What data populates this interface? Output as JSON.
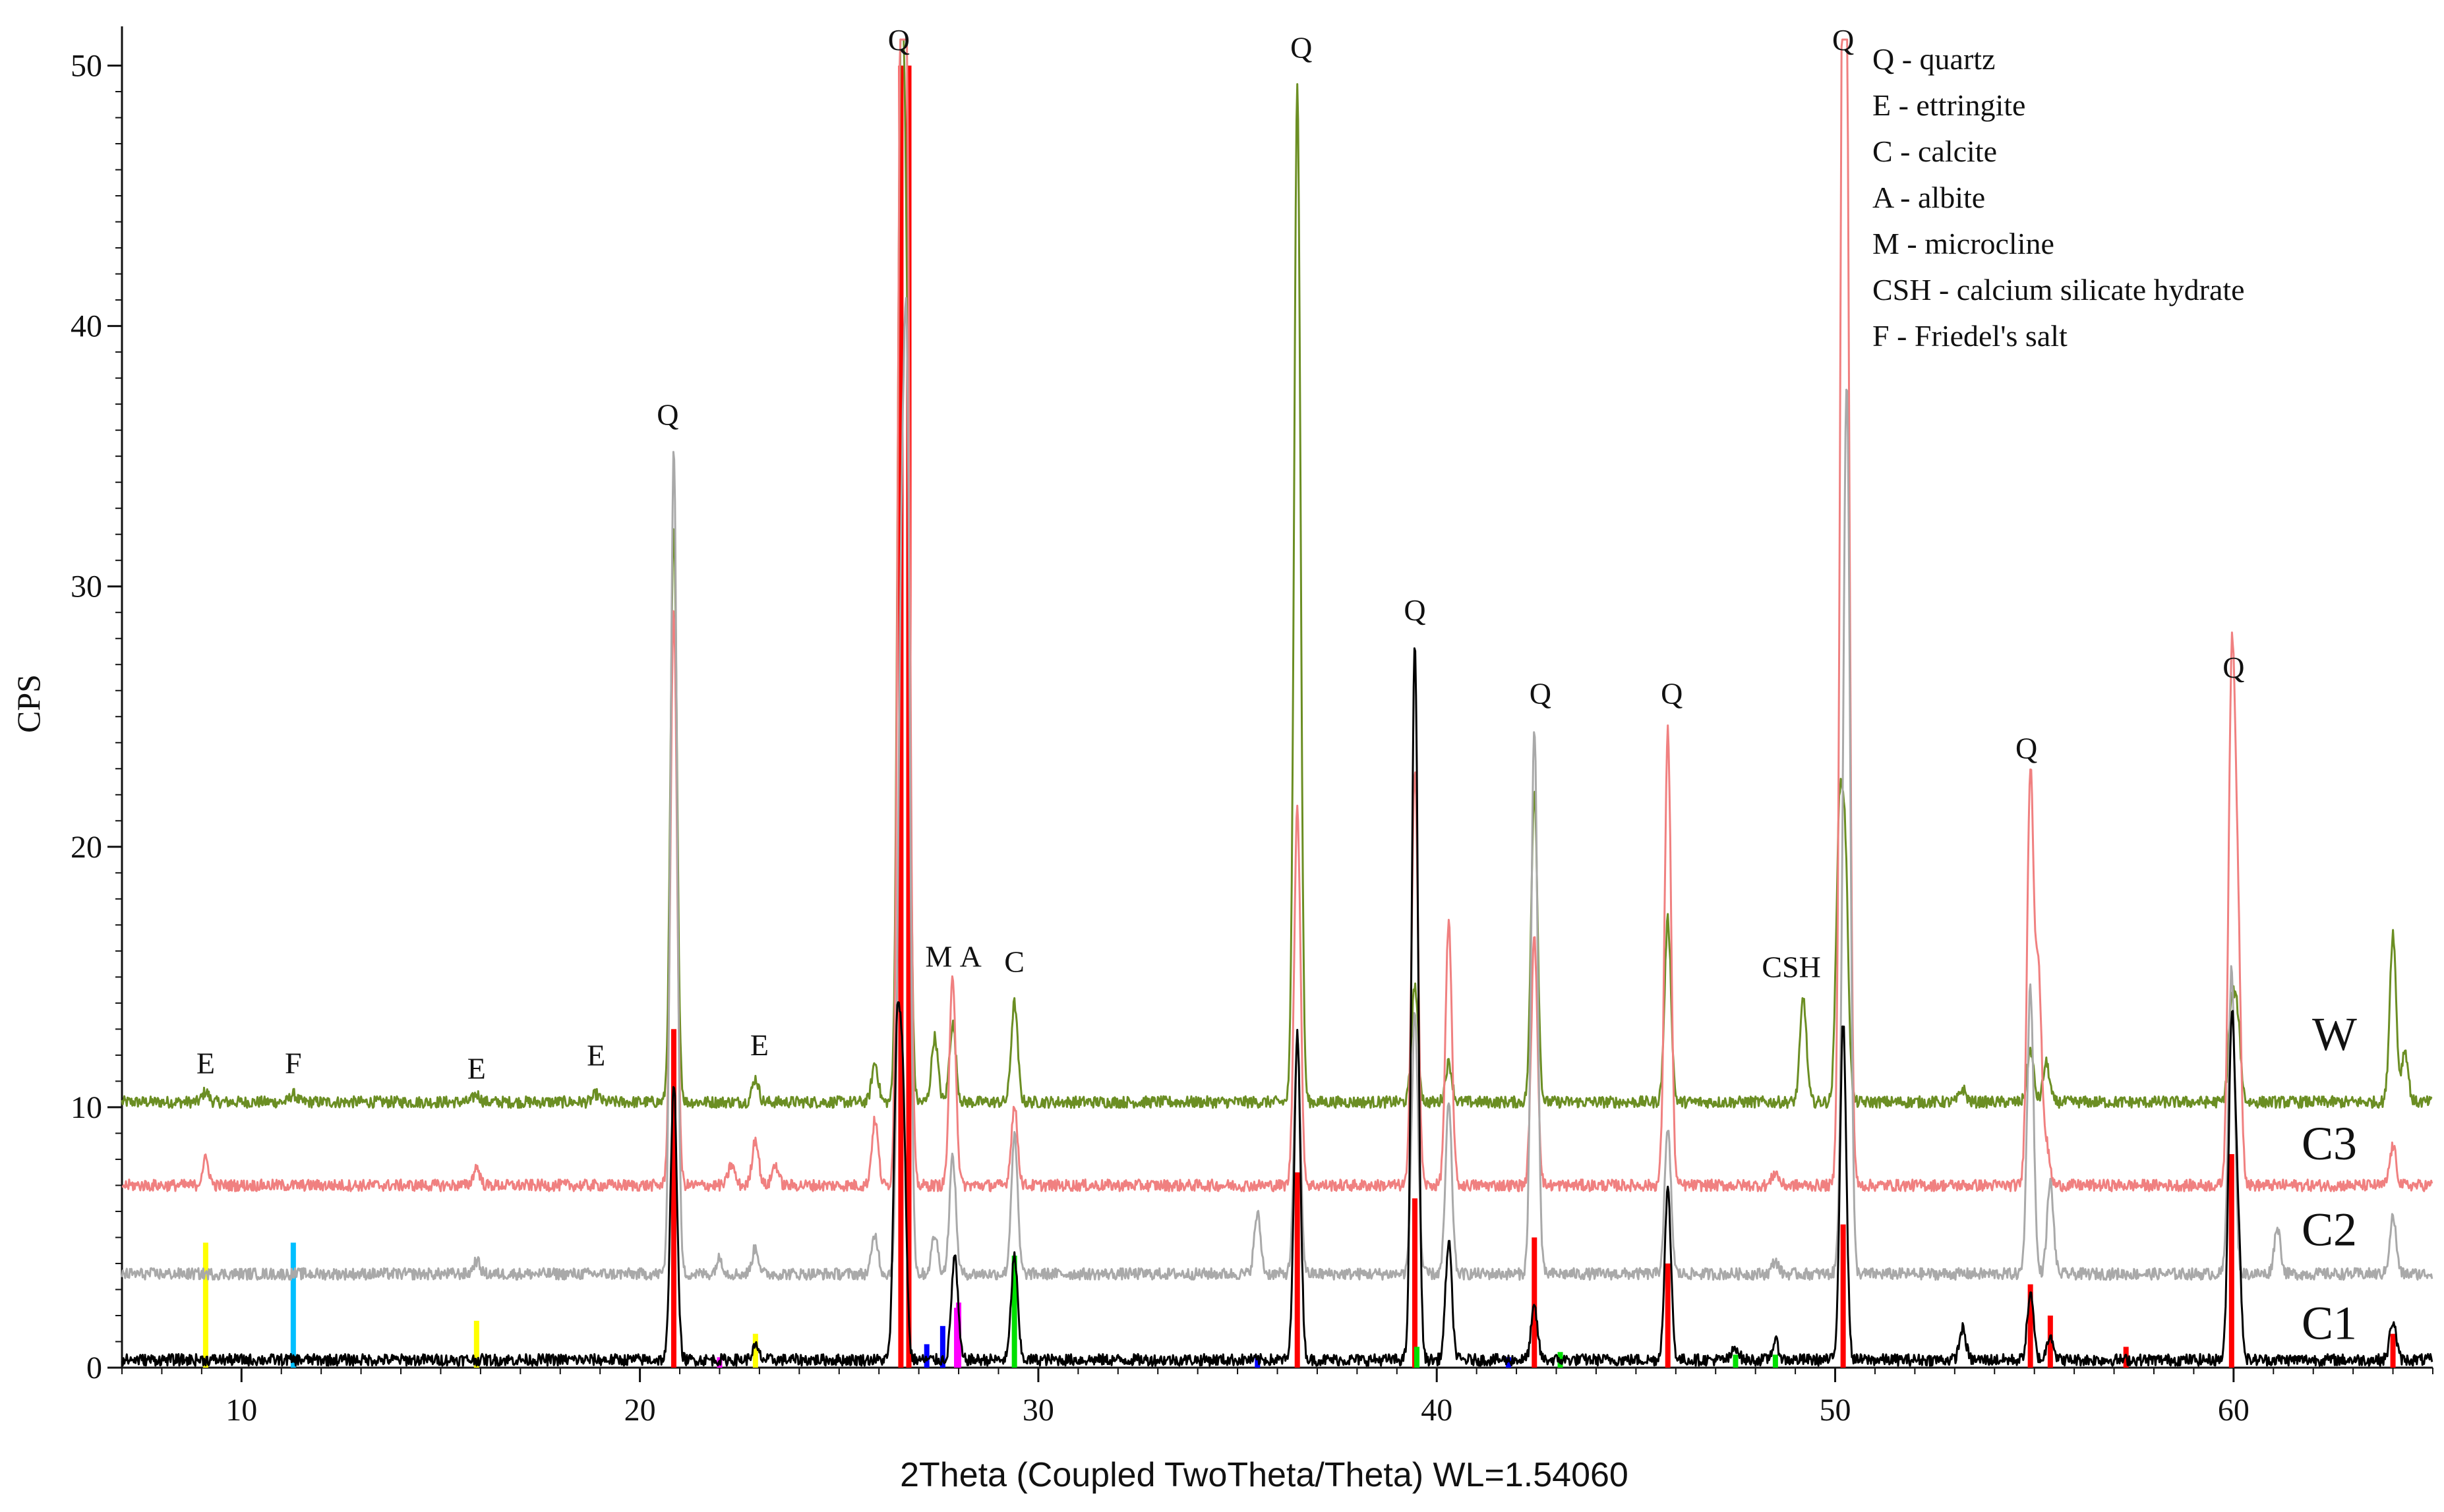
{
  "chart_data": {
    "type": "line",
    "xlabel": "2Theta (Coupled TwoTheta/Theta) WL=1.54060",
    "ylabel": "CPS",
    "xlim": [
      7,
      65
    ],
    "ylim": [
      0,
      51
    ],
    "x_ticks": [
      10,
      20,
      30,
      40,
      50,
      60
    ],
    "y_ticks": [
      0,
      10,
      20,
      30,
      40,
      50
    ],
    "grid": false,
    "series": [
      {
        "name": "W",
        "color": "#6b8e23",
        "baseline": 10.2,
        "peaks": [
          [
            9.1,
            0.4
          ],
          [
            11.3,
            0.3
          ],
          [
            15.9,
            0.3
          ],
          [
            18.9,
            0.3
          ],
          [
            20.85,
            22
          ],
          [
            22.9,
            0.9
          ],
          [
            25.9,
            1.5
          ],
          [
            26.55,
            39
          ],
          [
            26.7,
            25
          ],
          [
            27.4,
            2.5
          ],
          [
            27.85,
            3
          ],
          [
            29.4,
            3.8
          ],
          [
            36.5,
            39
          ],
          [
            39.45,
            4.5
          ],
          [
            40.3,
            1.5
          ],
          [
            42.45,
            12
          ],
          [
            45.8,
            7
          ],
          [
            49.2,
            4
          ],
          [
            50.1,
            10
          ],
          [
            50.25,
            9
          ],
          [
            53.2,
            0.5
          ],
          [
            54.9,
            2
          ],
          [
            55.3,
            1.5
          ],
          [
            59.95,
            3.5
          ],
          [
            60.1,
            3
          ],
          [
            64.0,
            6.5
          ],
          [
            64.3,
            2
          ]
        ]
      },
      {
        "name": "C3",
        "color": "#f08080",
        "baseline": 7.0,
        "peaks": [
          [
            9.1,
            1.0
          ],
          [
            15.9,
            0.7
          ],
          [
            20.85,
            22
          ],
          [
            22.3,
            0.8
          ],
          [
            22.9,
            1.8
          ],
          [
            23.4,
            0.8
          ],
          [
            25.9,
            2.5
          ],
          [
            26.55,
            43
          ],
          [
            26.7,
            38
          ],
          [
            27.85,
            8
          ],
          [
            29.4,
            3
          ],
          [
            36.5,
            14.5
          ],
          [
            39.45,
            16
          ],
          [
            40.3,
            10
          ],
          [
            42.45,
            9.5
          ],
          [
            45.8,
            17.5
          ],
          [
            48.5,
            0.5
          ],
          [
            50.2,
            42.8
          ],
          [
            50.3,
            27
          ],
          [
            54.9,
            15.8
          ],
          [
            55.1,
            8
          ],
          [
            55.3,
            1.5
          ],
          [
            59.95,
            19
          ],
          [
            60.1,
            10
          ],
          [
            64.0,
            1.5
          ]
        ]
      },
      {
        "name": "C2",
        "color": "#a9a9a9",
        "baseline": 3.6,
        "peaks": [
          [
            15.9,
            0.5
          ],
          [
            20.85,
            31.7
          ],
          [
            22.0,
            0.6
          ],
          [
            22.9,
            1
          ],
          [
            25.9,
            1.5
          ],
          [
            26.55,
            22
          ],
          [
            26.7,
            32.5
          ],
          [
            27.4,
            1.5
          ],
          [
            27.85,
            4.5
          ],
          [
            29.4,
            5.3
          ],
          [
            35.5,
            2.3
          ],
          [
            36.5,
            9
          ],
          [
            39.45,
            10
          ],
          [
            40.3,
            6.5
          ],
          [
            42.45,
            21
          ],
          [
            45.8,
            5.5
          ],
          [
            48.5,
            0.5
          ],
          [
            50.3,
            31
          ],
          [
            50.2,
            6.5
          ],
          [
            54.9,
            11
          ],
          [
            55.4,
            3.5
          ],
          [
            59.95,
            11.7
          ],
          [
            61.1,
            1.8
          ],
          [
            64.0,
            2.2
          ]
        ]
      },
      {
        "name": "C1",
        "color": "#000000",
        "baseline": 0.3,
        "peaks": [
          [
            20.85,
            10.7
          ],
          [
            22.9,
            0.5
          ],
          [
            26.45,
            11.5
          ],
          [
            26.6,
            9.5
          ],
          [
            27.9,
            4
          ],
          [
            29.4,
            4
          ],
          [
            36.5,
            12.5
          ],
          [
            39.45,
            27.5
          ],
          [
            40.3,
            4.5
          ],
          [
            42.45,
            2
          ],
          [
            45.8,
            6.5
          ],
          [
            47.5,
            0.5
          ],
          [
            48.5,
            0.7
          ],
          [
            50.2,
            13
          ],
          [
            53.2,
            1.2
          ],
          [
            54.9,
            2.5
          ],
          [
            55.4,
            1
          ],
          [
            59.95,
            12.5
          ],
          [
            60.1,
            5
          ],
          [
            64.0,
            1.5
          ]
        ]
      }
    ],
    "reference_lines": [
      {
        "color": "#ffff00",
        "x": [
          9.1,
          15.9,
          22.9
        ],
        "heights": [
          4.8,
          1.8,
          1.3
        ]
      },
      {
        "color": "#00bfff",
        "x": [
          11.3
        ],
        "heights": [
          4.8
        ]
      },
      {
        "color": "#ff0000",
        "x": [
          20.85,
          26.55,
          26.75,
          36.5,
          39.45,
          42.45,
          45.8,
          50.2,
          54.9,
          55.4,
          57.3,
          59.95,
          64.0
        ],
        "heights": [
          13,
          50,
          50,
          7.5,
          6.5,
          5,
          4,
          5.5,
          3.2,
          2,
          0.8,
          8.2,
          1.3
        ]
      },
      {
        "color": "#00e000",
        "x": [
          29.4,
          39.5,
          43.1,
          47.5,
          48.5
        ],
        "heights": [
          4.3,
          0.8,
          0.6,
          0.5,
          0.5
        ]
      },
      {
        "color": "#0000ff",
        "x": [
          27.2,
          27.6,
          35.5,
          41.8
        ],
        "heights": [
          0.9,
          1.6,
          0.4,
          0.4
        ]
      },
      {
        "color": "#ff00ff",
        "x": [
          22.0,
          27.95,
          28.0
        ],
        "heights": [
          0.4,
          2.3,
          2.5
        ]
      }
    ],
    "peak_labels": [
      {
        "text": "E",
        "x": 9.1,
        "y": 11.3
      },
      {
        "text": "F",
        "x": 11.3,
        "y": 11.3
      },
      {
        "text": "E",
        "x": 15.9,
        "y": 11.1
      },
      {
        "text": "E",
        "x": 18.9,
        "y": 11.6
      },
      {
        "text": "E",
        "x": 23.0,
        "y": 12.0
      },
      {
        "text": "Q",
        "x": 20.7,
        "y": 36.2
      },
      {
        "text": "Q",
        "x": 26.5,
        "y": 50.6
      },
      {
        "text": "M",
        "x": 27.5,
        "y": 15.4
      },
      {
        "text": "A",
        "x": 28.3,
        "y": 15.4
      },
      {
        "text": "C",
        "x": 29.4,
        "y": 15.2
      },
      {
        "text": "Q",
        "x": 36.6,
        "y": 50.3
      },
      {
        "text": "Q",
        "x": 39.45,
        "y": 28.7
      },
      {
        "text": "Q",
        "x": 42.6,
        "y": 25.5
      },
      {
        "text": "Q",
        "x": 45.9,
        "y": 25.5
      },
      {
        "text": "CSH",
        "x": 48.9,
        "y": 15.0
      },
      {
        "text": "Q",
        "x": 50.2,
        "y": 50.6
      },
      {
        "text": "Q",
        "x": 54.8,
        "y": 23.4
      },
      {
        "text": "Q",
        "x": 60.0,
        "y": 26.5
      }
    ],
    "legend_entries": [
      "Q - quartz",
      "E - ettringite",
      "C - calcite",
      "A - albite",
      "M - microcline",
      "CSH - calcium silicate hydrate",
      "F - Friedel's salt"
    ],
    "legend_placement": "top-right",
    "series_labels": [
      {
        "text": "W",
        "y": 12.2
      },
      {
        "text": "C3",
        "y": 8.0
      },
      {
        "text": "C2",
        "y": 4.7
      },
      {
        "text": "C1",
        "y": 1.1
      }
    ]
  }
}
